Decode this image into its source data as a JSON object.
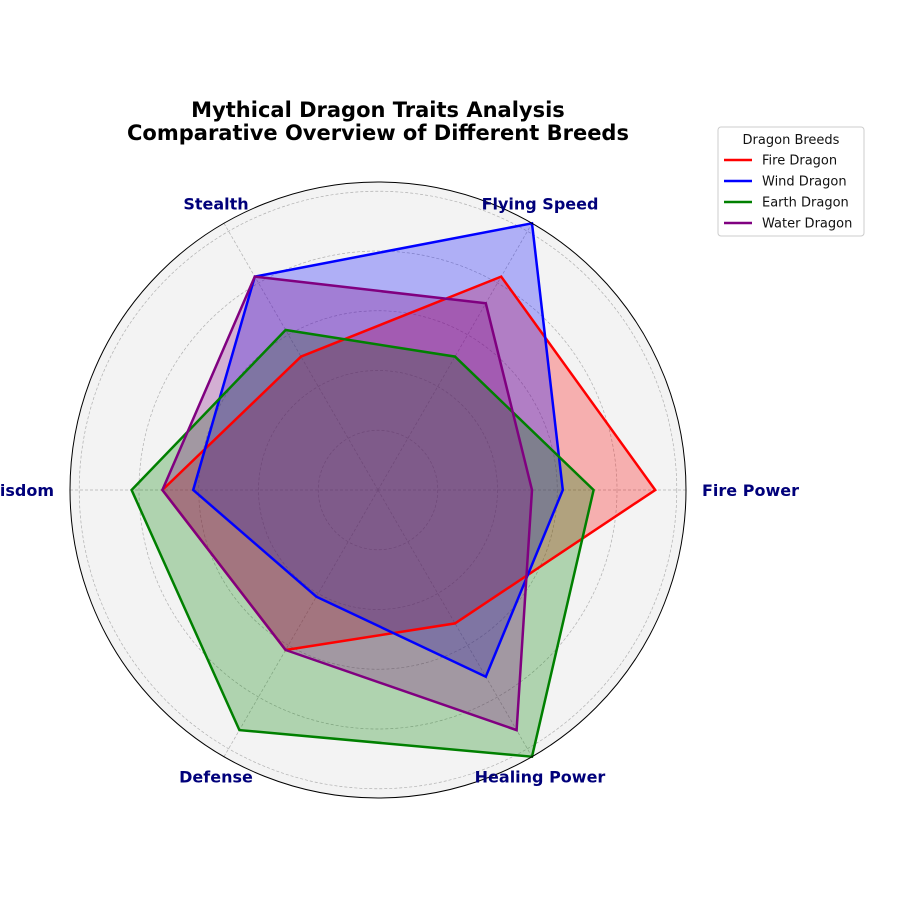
{
  "chart_data": {
    "type": "radar",
    "title": "Mythical Dragon Traits Analysis",
    "subtitle": "Comparative Overview of Different Breeds",
    "categories": [
      "Fire Power",
      "Flying Speed",
      "Stealth",
      "Wisdom",
      "Defense",
      "Healing Power"
    ],
    "rlim": [
      0,
      10
    ],
    "grid": true,
    "legend": {
      "title": "Dragon Breeds",
      "placement": "top-right"
    },
    "series": [
      {
        "name": "Fire Dragon",
        "values": [
          9,
          8,
          5,
          7,
          6,
          5
        ],
        "color": "#ff0000"
      },
      {
        "name": "Wind Dragon",
        "values": [
          6,
          10,
          8,
          6,
          4,
          7
        ],
        "color": "#0000ff"
      },
      {
        "name": "Earth Dragon",
        "values": [
          7,
          5,
          6,
          8,
          9,
          10
        ],
        "color": "#008000"
      },
      {
        "name": "Water Dragon",
        "values": [
          5,
          7,
          8,
          7,
          6,
          9
        ],
        "color": "#800080"
      }
    ]
  }
}
